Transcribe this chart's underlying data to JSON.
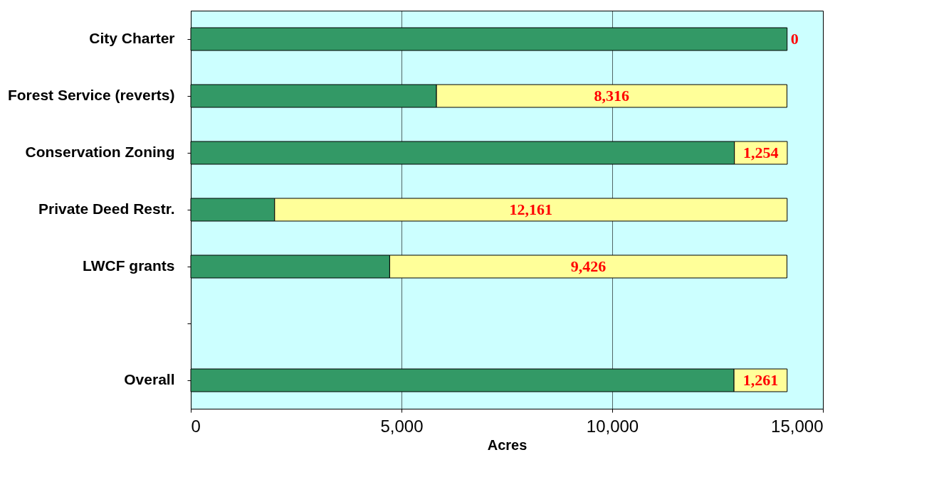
{
  "chart_data": {
    "type": "bar",
    "orientation": "horizontal",
    "stacked": true,
    "xlabel": "Acres",
    "categories": [
      "City Charter",
      "Forest Service (reverts)",
      "Conservation Zoning",
      "Private Deed Restr.",
      "LWCF grants",
      null,
      "Overall"
    ],
    "series": [
      {
        "color": "#339966",
        "values": [
          14150,
          5830,
          12900,
          1990,
          4720,
          null,
          12890
        ]
      },
      {
        "color": "#ffff99",
        "values": [
          0,
          8316,
          1254,
          12161,
          9426,
          null,
          1261
        ],
        "value_labels": [
          "0",
          "8,316",
          "1,254",
          "12,161",
          "9,426",
          null,
          "1,261"
        ]
      }
    ],
    "xlim": [
      0,
      15000
    ],
    "xticks": [
      0,
      {
        "value": 5000,
        "label": "5,000"
      },
      {
        "value": 10000,
        "label": "10,000"
      },
      {
        "value": 15000,
        "label": "15,000"
      }
    ],
    "grid": "x"
  }
}
